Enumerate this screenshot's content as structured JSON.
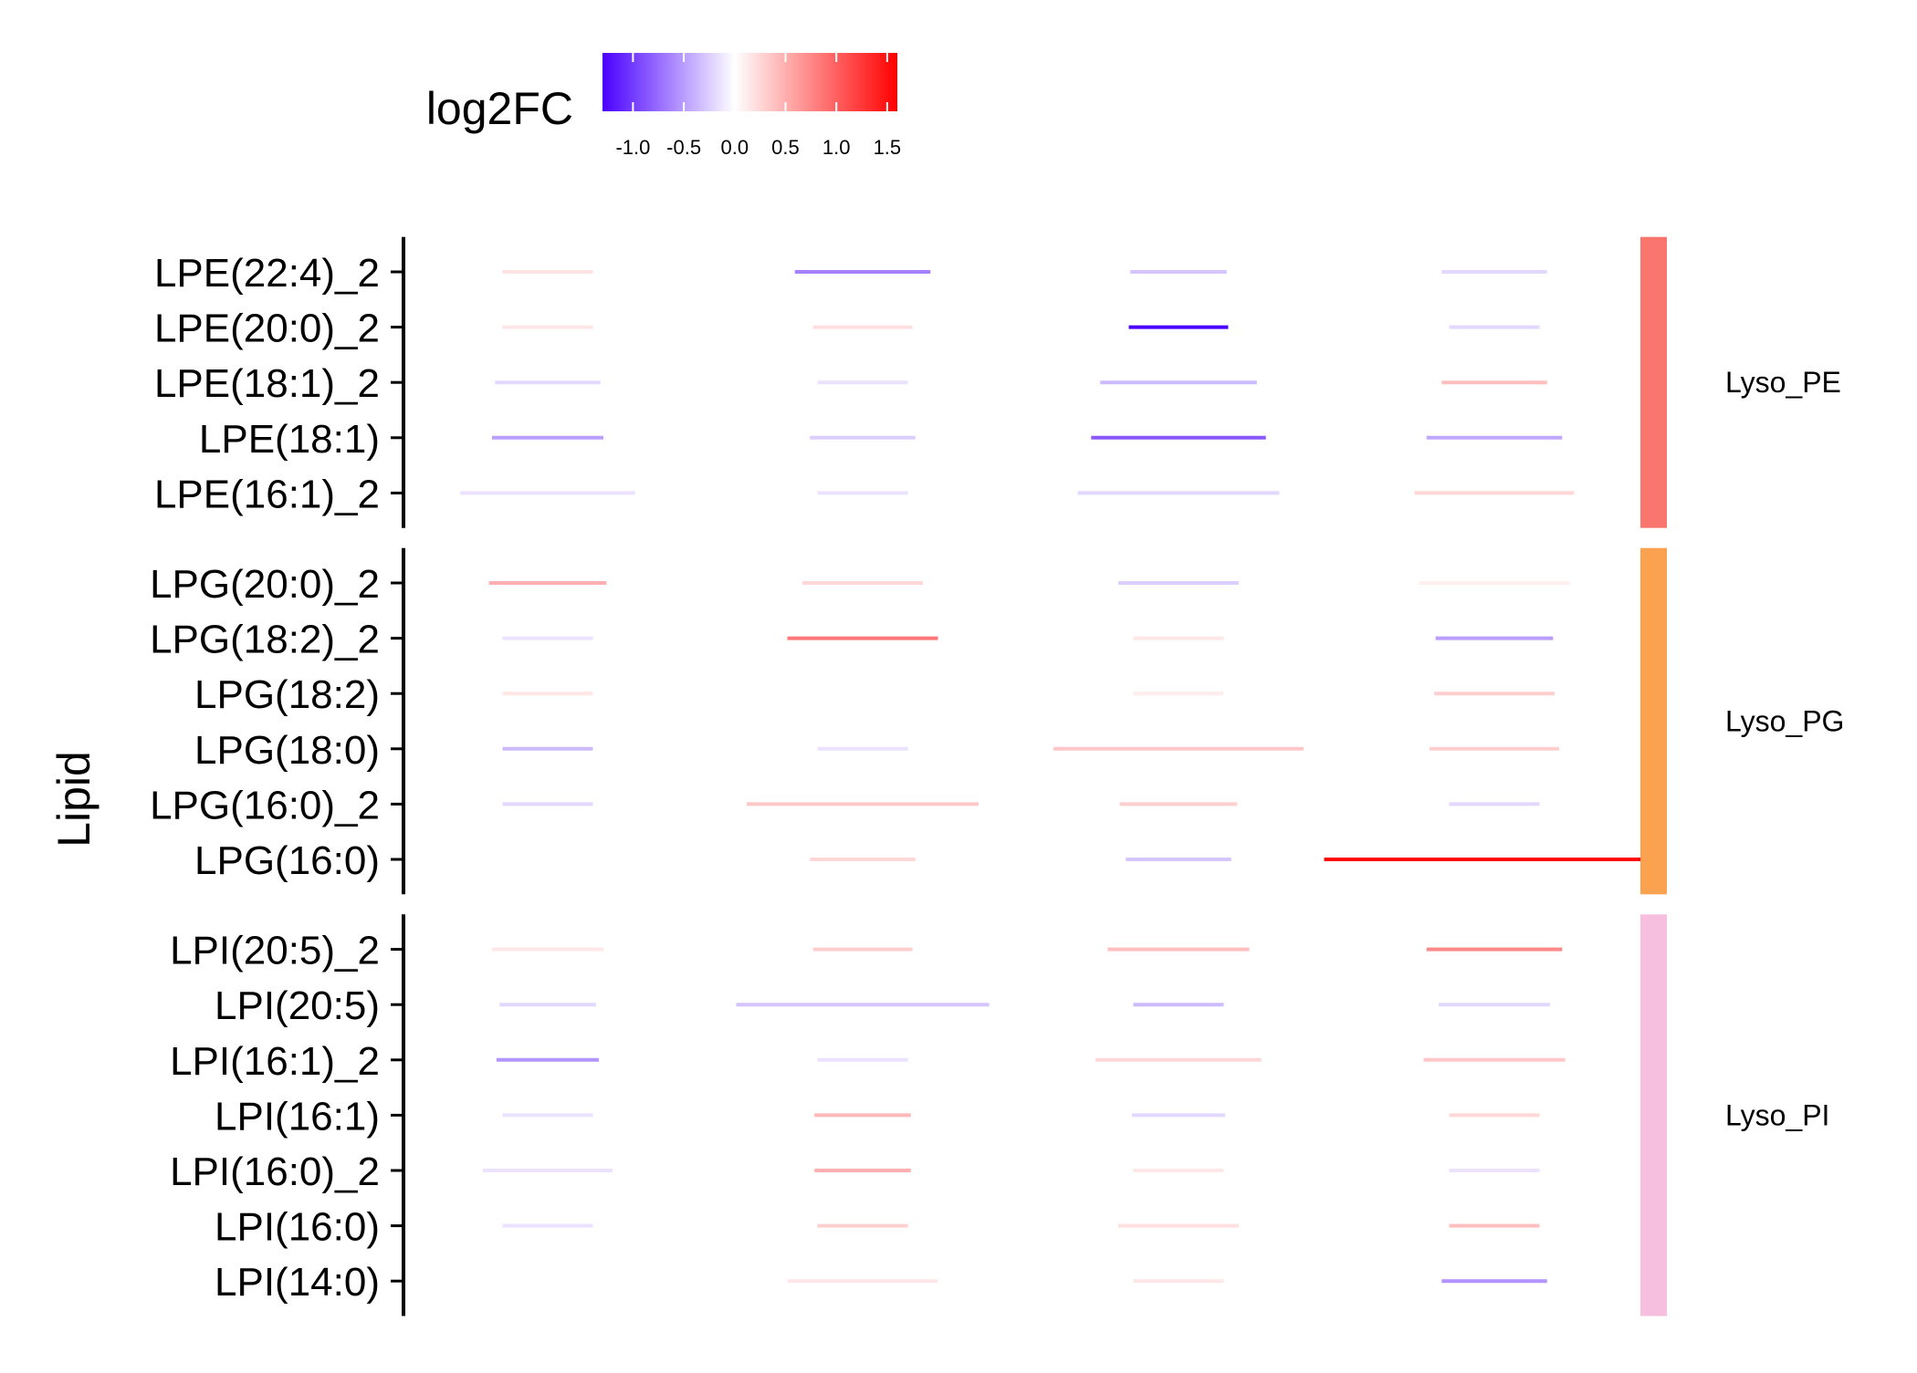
{
  "chart_data": {
    "type": "heatmap",
    "title": "",
    "xlabel": "",
    "ylabel": "Lipid",
    "legend": {
      "title": "log2FC",
      "position": "top",
      "range": [
        -1.3,
        1.6
      ],
      "ticks": [
        "-1.0",
        "-0.5",
        "0.0",
        "0.5",
        "1.0",
        "1.5"
      ],
      "colors": {
        "low": "#4a00ff",
        "mid": "#ffffff",
        "high": "#ff0000"
      }
    },
    "columns": 4,
    "groups": [
      {
        "name": "Lyso_PE",
        "color": "#f8766d",
        "rows": [
          {
            "label": "LPE(22:4)_2",
            "values": [
              0.18,
              -0.65,
              -0.3,
              -0.2
            ],
            "widths": [
              0.3,
              0.45,
              0.32,
              0.35
            ]
          },
          {
            "label": "LPE(20:0)_2",
            "values": [
              0.15,
              0.2,
              -1.3,
              -0.2
            ],
            "widths": [
              0.3,
              0.33,
              0.33,
              0.3
            ]
          },
          {
            "label": "LPE(18:1)_2",
            "values": [
              -0.2,
              -0.15,
              -0.35,
              0.4
            ],
            "widths": [
              0.35,
              0.3,
              0.52,
              0.35
            ]
          },
          {
            "label": "LPE(18:1)",
            "values": [
              -0.5,
              -0.25,
              -0.85,
              -0.45
            ],
            "widths": [
              0.37,
              0.35,
              0.58,
              0.45
            ]
          },
          {
            "label": "LPE(16:1)_2",
            "values": [
              -0.15,
              -0.15,
              -0.2,
              0.25
            ],
            "widths": [
              0.58,
              0.3,
              0.67,
              0.53
            ]
          }
        ]
      },
      {
        "name": "Lyso_PG",
        "color": "#fba250",
        "rows": [
          {
            "label": "LPG(20:0)_2",
            "values": [
              0.5,
              0.25,
              -0.25,
              0.1
            ],
            "widths": [
              0.39,
              0.4,
              0.4,
              0.5
            ]
          },
          {
            "label": "LPG(18:2)_2",
            "values": [
              -0.15,
              0.85,
              0.15,
              -0.5
            ],
            "widths": [
              0.3,
              0.5,
              0.3,
              0.39
            ]
          },
          {
            "label": "LPG(18:2)",
            "values": [
              0.15,
              null,
              0.12,
              0.3
            ],
            "widths": [
              0.3,
              0,
              0.3,
              0.4
            ]
          },
          {
            "label": "LPG(18:0)",
            "values": [
              -0.35,
              -0.15,
              0.35,
              0.3
            ],
            "widths": [
              0.3,
              0.3,
              0.83,
              0.43
            ]
          },
          {
            "label": "LPG(16:0)_2",
            "values": [
              -0.2,
              0.35,
              0.3,
              -0.2
            ],
            "widths": [
              0.3,
              0.77,
              0.39,
              0.3
            ]
          },
          {
            "label": "LPG(16:0)",
            "values": [
              null,
              0.25,
              -0.3,
              1.6
            ],
            "widths": [
              0,
              0.35,
              0.35,
              1.13
            ]
          }
        ]
      },
      {
        "name": "Lyso_PI",
        "color": "#f7bfdf",
        "rows": [
          {
            "label": "LPI(20:5)_2",
            "values": [
              0.15,
              0.3,
              0.4,
              0.75
            ],
            "widths": [
              0.37,
              0.33,
              0.47,
              0.45
            ]
          },
          {
            "label": "LPI(20:5)",
            "values": [
              -0.2,
              -0.3,
              -0.35,
              -0.2
            ],
            "widths": [
              0.32,
              0.84,
              0.3,
              0.37
            ]
          },
          {
            "label": "LPI(16:1)_2",
            "values": [
              -0.55,
              -0.15,
              0.25,
              0.35
            ],
            "widths": [
              0.34,
              0.3,
              0.55,
              0.47
            ]
          },
          {
            "label": "LPI(16:1)",
            "values": [
              -0.15,
              0.45,
              -0.2,
              0.25
            ],
            "widths": [
              0.3,
              0.32,
              0.31,
              0.3
            ]
          },
          {
            "label": "LPI(16:0)_2",
            "values": [
              -0.15,
              0.5,
              0.15,
              -0.15
            ],
            "widths": [
              0.43,
              0.32,
              0.3,
              0.3
            ]
          },
          {
            "label": "LPI(16:0)",
            "values": [
              -0.15,
              0.3,
              0.2,
              0.4
            ],
            "widths": [
              0.3,
              0.3,
              0.4,
              0.3
            ]
          },
          {
            "label": "LPI(14:0)",
            "values": [
              null,
              0.15,
              0.15,
              -0.55
            ],
            "widths": [
              0,
              0.5,
              0.3,
              0.35
            ]
          }
        ]
      }
    ]
  }
}
